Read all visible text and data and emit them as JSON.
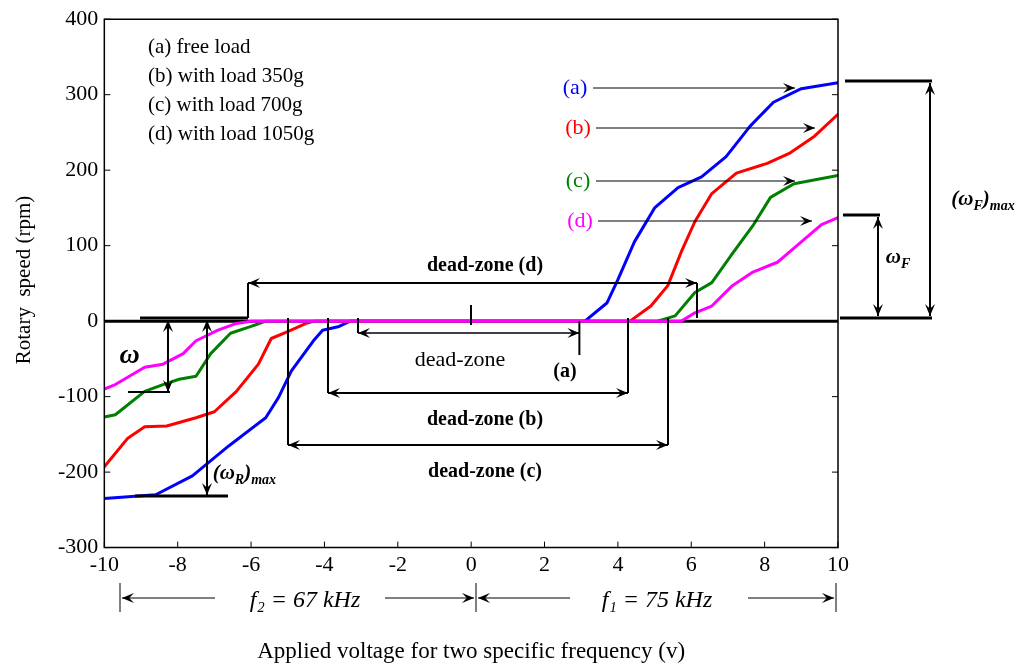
{
  "chart_data": {
    "type": "line",
    "xlabel": "Applied voltage for two specific frequency (v)",
    "ylabel": "Rotary  speed (rpm)",
    "xlim": [
      -10,
      10
    ],
    "xticks": [
      -10,
      -8,
      -6,
      -4,
      -2,
      0,
      2,
      4,
      6,
      8,
      10
    ],
    "ylim": [
      -300,
      400
    ],
    "yticks": [
      -300,
      -200,
      -100,
      0,
      100,
      200,
      300,
      400
    ],
    "series": [
      {
        "name": "(a)",
        "color": "#0000ff",
        "x": [
          -10,
          -8.6,
          -7.6,
          -6.6,
          -5.6,
          -5.25,
          -4.9,
          -4.3,
          -4.05,
          -3.6,
          -3.3,
          3.1,
          3.7,
          4.0,
          4.45,
          5.0,
          5.64,
          6.28,
          6.95,
          7.6,
          8.24,
          9.0,
          10
        ],
        "values": [
          -235,
          -230,
          -205,
          -165,
          -128,
          -101,
          -66,
          -26,
          -12,
          -7,
          0,
          0,
          24,
          55,
          105,
          150,
          177,
          191,
          218,
          258,
          290,
          308,
          316
        ]
      },
      {
        "name": "(b)",
        "color": "#ff0000",
        "x": [
          -10,
          -9.36,
          -8.9,
          -8.3,
          -7.5,
          -7.0,
          -6.4,
          -5.8,
          -5.45,
          -5.0,
          -4.5,
          -4.27,
          4.33,
          4.9,
          5.36,
          5.73,
          6.1,
          6.56,
          7.23,
          8.07,
          8.7,
          9.36,
          10
        ],
        "values": [
          -193,
          -155,
          -140,
          -139,
          -128,
          -120,
          -93,
          -57,
          -23,
          -14,
          -3,
          0,
          0,
          20,
          47,
          92,
          132,
          169,
          196,
          209,
          223,
          245,
          274
        ]
      },
      {
        "name": "(c)",
        "color": "#008000",
        "x": [
          -10,
          -9.7,
          -8.9,
          -8.4,
          -7.96,
          -7.5,
          -7.1,
          -6.56,
          -6.0,
          -5.6,
          5.08,
          5.56,
          6.1,
          6.56,
          7.1,
          7.7,
          8.16,
          8.8,
          10
        ],
        "values": [
          -127,
          -124,
          -93,
          -84,
          -77,
          -73,
          -43,
          -16,
          -7,
          0,
          0,
          7,
          38,
          51,
          88,
          128,
          164,
          182,
          193
        ]
      },
      {
        "name": "(d)",
        "color": "#ff00ff",
        "x": [
          -10,
          -9.7,
          -8.9,
          -8.4,
          -7.85,
          -7.5,
          -6.9,
          -6.4,
          -6.0,
          5.73,
          6.1,
          6.56,
          7.12,
          7.68,
          8.35,
          9.0,
          9.55,
          10
        ],
        "values": [
          -90,
          -84,
          -61,
          -57,
          -43,
          -26,
          -12,
          -3,
          0,
          0,
          11,
          20,
          47,
          65,
          78,
          105,
          128,
          137
        ]
      }
    ],
    "ref_lines": [
      {
        "axis": "y",
        "value": 0
      }
    ],
    "annotations": [
      "(a) free load",
      "(b) with load 350g",
      "(c) with load 700g",
      "(d) with load 1050g",
      "dead-zone (d)",
      "dead-zone",
      {
        "text": "(a)",
        "x": 2.95,
        "y": 0
      },
      "dead-zone (b)",
      "dead-zone (c)",
      {
        "text": "ω",
        "x": -8.9,
        "y": -61
      },
      {
        "text": "(ω$_{R}$)$_{max}$",
        "x": -7.6,
        "y": -205
      },
      "(ω$_{F}$)$_{max}$",
      "ω$_{F}$",
      "f₂ = 67 kHz",
      "f₁ = 75 kHz"
    ]
  }
}
